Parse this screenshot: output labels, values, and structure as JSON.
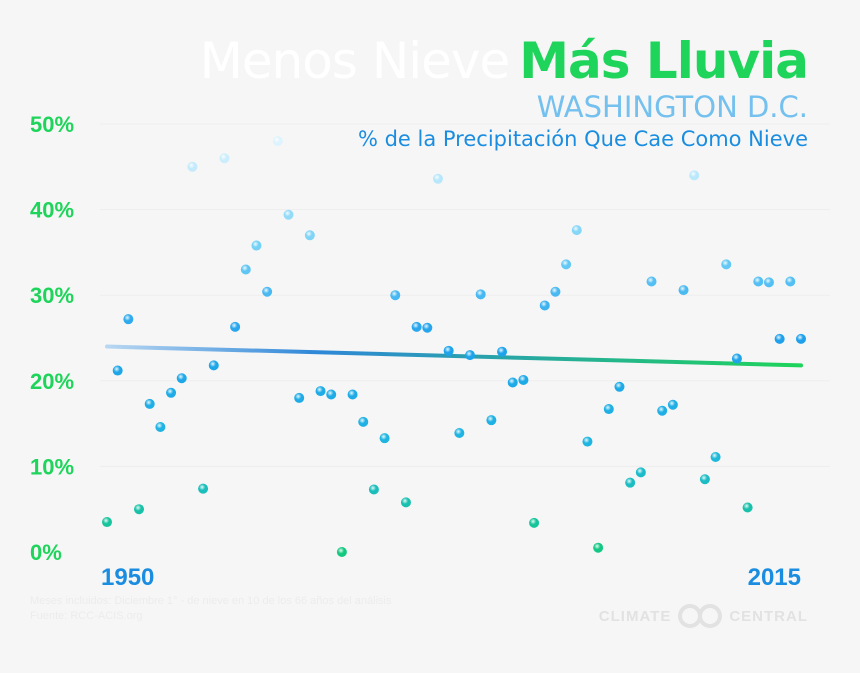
{
  "title": {
    "part1": "Menos Nieve",
    "part2": "Más Lluvia",
    "location": "WASHINGTON D.C.",
    "subtitle": "% de la Precipitación Que Cae Como Nieve"
  },
  "footnote": {
    "line1": "Meses incluidos: Diciembre 1° - de nieve en 10 de los 66 años del análisis",
    "line2": "Fuente: RCC-ACIS.org"
  },
  "logo": {
    "left": "CLIMATE",
    "right": "CENTRAL"
  },
  "colors": {
    "green": "#1ed45a",
    "blue": "#1b8de0",
    "light_blue": "#74c0ee",
    "background": "#f6f6f6"
  },
  "chart_data": {
    "type": "scatter",
    "title": "% de la Precipitación Que Cae Como Nieve",
    "xlabel": "",
    "ylabel": "",
    "x_tick_labels": [
      "1950",
      "2015"
    ],
    "y_tick_labels": [
      "0%",
      "10%",
      "20%",
      "30%",
      "40%",
      "50%"
    ],
    "xlim": [
      1950,
      2015
    ],
    "ylim": [
      0,
      50
    ],
    "grid": false,
    "series": [
      {
        "x": [
          1950,
          1951,
          1952,
          1953,
          1954,
          1955,
          1956,
          1957,
          1958,
          1959,
          1960,
          1961,
          1962,
          1963,
          1964,
          1965,
          1966,
          1967,
          1968,
          1969,
          1970,
          1971,
          1972,
          1973,
          1974,
          1975,
          1976,
          1977,
          1978,
          1979,
          1980,
          1981,
          1982,
          1983,
          1984,
          1985,
          1986,
          1987,
          1988,
          1989,
          1990,
          1991,
          1992,
          1993,
          1994,
          1995,
          1996,
          1997,
          1998,
          1999,
          2000,
          2001,
          2002,
          2003,
          2004,
          2005,
          2006,
          2007,
          2008,
          2009,
          2010,
          2011,
          2012,
          2013,
          2014,
          2015
        ],
        "y": [
          3.5,
          21.2,
          27.2,
          5.0,
          17.3,
          14.6,
          18.6,
          20.3,
          45.0,
          7.4,
          21.8,
          46.0,
          26.3,
          33.0,
          35.8,
          30.4,
          48.0,
          39.4,
          18.0,
          37.0,
          18.8,
          18.4,
          0.0,
          18.4,
          15.2,
          7.3,
          13.3,
          30.0,
          5.8,
          26.3,
          26.2,
          43.6,
          23.5,
          13.9,
          23.0,
          30.1,
          15.4,
          23.4,
          19.8,
          20.1,
          3.4,
          28.8,
          30.4,
          33.6,
          37.6,
          12.9,
          0.5,
          16.7,
          19.3,
          8.1,
          9.3,
          31.6,
          16.5,
          17.2,
          30.6,
          44.0,
          8.5,
          11.1,
          33.6,
          22.6,
          5.2,
          31.6,
          31.5,
          24.9,
          31.6,
          24.9
        ]
      }
    ],
    "trend_line": {
      "start": [
        1950,
        24.0
      ],
      "end": [
        2015,
        21.8
      ]
    }
  }
}
